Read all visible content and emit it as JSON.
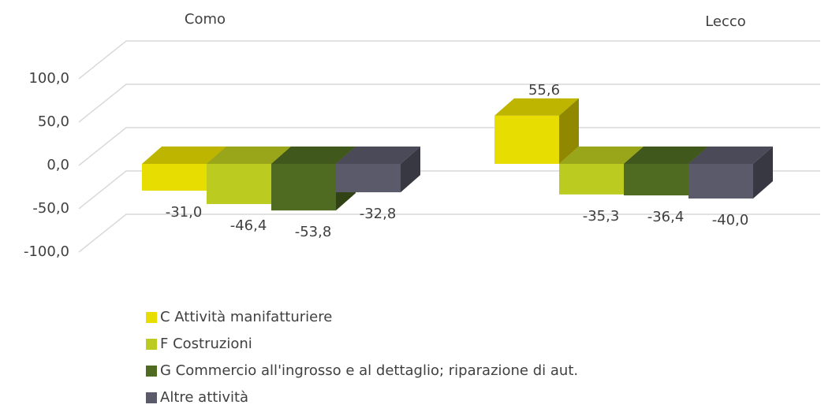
{
  "chart_data": {
    "type": "bar3d",
    "categories": [
      "Como",
      "Lecco"
    ],
    "series": [
      {
        "name": "C Attività manifatturiere",
        "color": "#e8dd00",
        "values": [
          -31.0,
          55.6
        ],
        "value_labels": [
          "-31,0",
          "55,6"
        ]
      },
      {
        "name": "F Costruzioni",
        "color": "#bccb1f",
        "values": [
          -46.4,
          -35.3
        ],
        "value_labels": [
          "-46,4",
          "-35,3"
        ]
      },
      {
        "name": "G Commercio all'ingrosso e al dettaglio; riparazione di aut.",
        "color": "#4f6b22",
        "values": [
          -53.8,
          -36.4
        ],
        "value_labels": [
          "-53,8",
          "-36,4"
        ]
      },
      {
        "name": "Altre attività",
        "color": "#5a5a6b",
        "values": [
          -32.8,
          -40.0
        ],
        "value_labels": [
          "-32,8",
          "-40,0"
        ]
      }
    ],
    "ylim": [
      -100,
      100
    ],
    "yticks": [
      {
        "value": -100,
        "label": "-100,0"
      },
      {
        "value": -50,
        "label": "-50,0"
      },
      {
        "value": 0,
        "label": "0,0"
      },
      {
        "value": 50,
        "label": "50,0"
      },
      {
        "value": 100,
        "label": "100,0"
      }
    ],
    "grid": true,
    "legend": "bottom"
  }
}
